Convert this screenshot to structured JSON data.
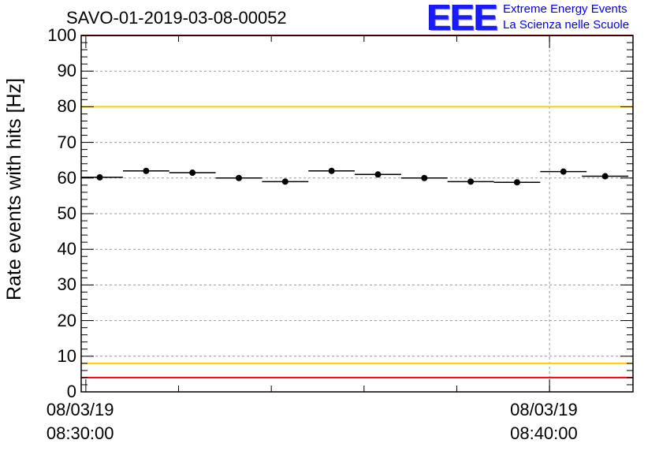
{
  "title": "SAVO-01-2019-03-08-00052",
  "logo": {
    "mark": "EEE",
    "line1": "Extreme Energy Events",
    "line2": "La Scienza nelle Scuole"
  },
  "chart_data": {
    "type": "scatter",
    "title": "SAVO-01-2019-03-08-00052",
    "xlabel": "",
    "ylabel": "Rate events with hits [Hz]",
    "ylim": [
      0,
      100
    ],
    "xlim_minutes": [
      -0.1,
      11.8
    ],
    "y_ticks": [
      "0",
      "10",
      "20",
      "30",
      "40",
      "50",
      "60",
      "70",
      "80",
      "90",
      "100"
    ],
    "x_ticks": [
      {
        "minute": 0,
        "date": "08/03/19",
        "time": "08:30:00"
      },
      {
        "minute": 10,
        "date": "08/03/19",
        "time": "08:40:00"
      }
    ],
    "grid": true,
    "reference_lines": [
      {
        "y": 100,
        "color": "#ff0000"
      },
      {
        "y": 80,
        "color": "#ffcc00"
      },
      {
        "y": 8,
        "color": "#ffcc00"
      },
      {
        "y": 4,
        "color": "#ff0000"
      }
    ],
    "series": [
      {
        "name": "rate",
        "bin_width_minutes": 1.0,
        "x_centers_minutes": [
          0.3,
          1.3,
          2.3,
          3.3,
          4.3,
          5.3,
          6.3,
          7.3,
          8.3,
          9.3,
          10.3,
          11.2
        ],
        "values": [
          60.2,
          62.0,
          61.5,
          60.0,
          59.0,
          62.0,
          61.0,
          60.0,
          59.0,
          58.8,
          61.8,
          60.5
        ],
        "errors": [
          0.8,
          0.8,
          0.8,
          0.8,
          0.8,
          0.8,
          0.8,
          0.8,
          0.8,
          0.8,
          0.8,
          0.8
        ]
      }
    ]
  }
}
